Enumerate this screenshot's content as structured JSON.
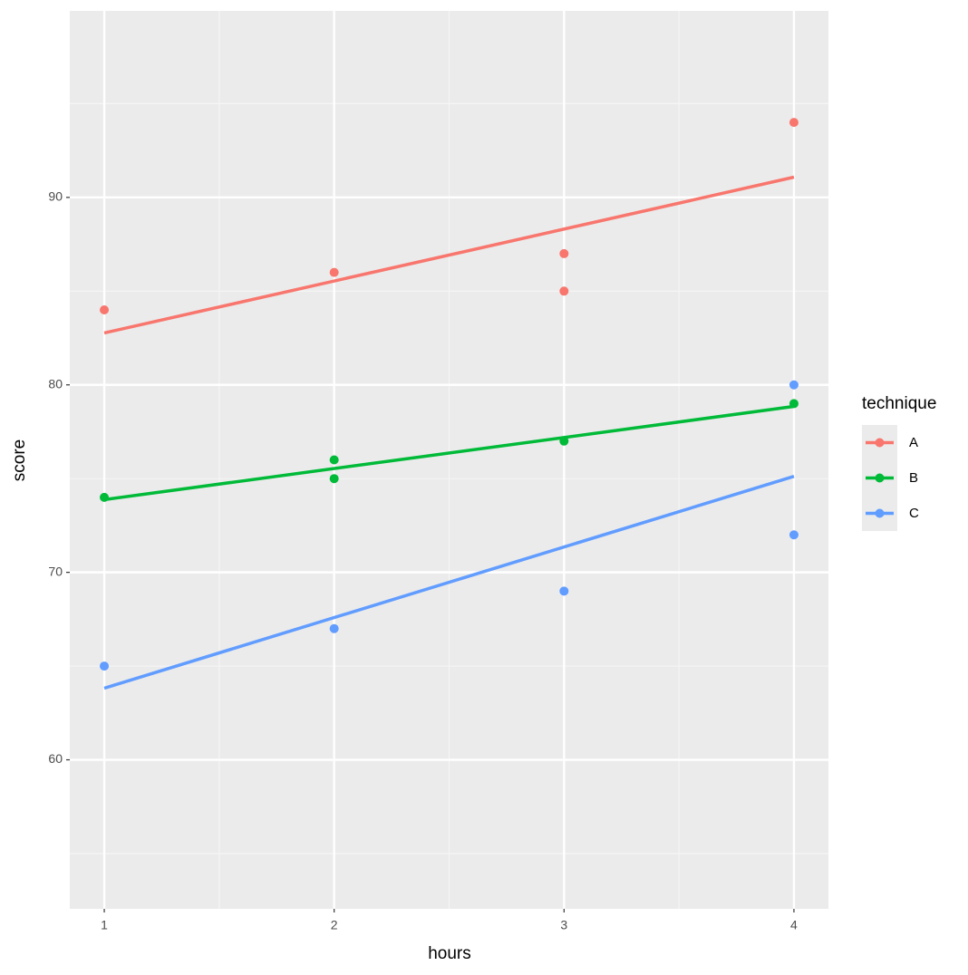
{
  "chart_data": {
    "type": "scatter",
    "x_label": "hours",
    "y_label": "score",
    "legend_title": "technique",
    "xlim": [
      0.85,
      4.15
    ],
    "xticks": [
      1,
      2,
      3,
      4
    ],
    "ylim": [
      52.05,
      99.95
    ],
    "yticks": [
      60,
      70,
      80,
      90
    ],
    "grid": true,
    "legend_position": "right",
    "series": [
      {
        "name": "A",
        "color": "#F8766D",
        "x": [
          1,
          2,
          3,
          3,
          4
        ],
        "values": [
          84,
          86,
          87,
          85,
          94
        ],
        "fit": {
          "x": [
            1,
            4
          ],
          "values": [
            82.77,
            91.08
          ]
        }
      },
      {
        "name": "B",
        "color": "#00BA38",
        "x": [
          1,
          2,
          2,
          3,
          4
        ],
        "values": [
          74,
          76,
          75,
          77,
          79
        ],
        "fit": {
          "x": [
            1,
            4
          ],
          "values": [
            73.88,
            78.85
          ]
        }
      },
      {
        "name": "C",
        "color": "#619CFF",
        "x": [
          1,
          2,
          3,
          4,
          4
        ],
        "values": [
          65,
          67,
          69,
          80,
          72
        ],
        "fit": {
          "x": [
            1,
            4
          ],
          "values": [
            63.82,
            75.12
          ]
        }
      }
    ]
  }
}
